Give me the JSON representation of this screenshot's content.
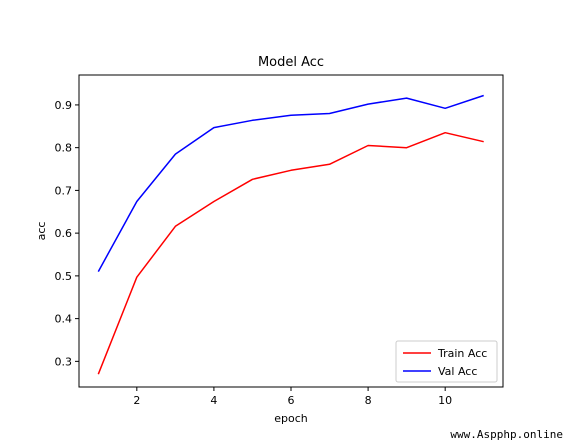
{
  "chart_data": {
    "type": "line",
    "title": "Model Acc",
    "xlabel": "epoch",
    "ylabel": "acc",
    "x": [
      1,
      2,
      3,
      4,
      5,
      6,
      7,
      8,
      9,
      10,
      11
    ],
    "xlim": [
      0.5,
      11.5
    ],
    "ylim": [
      0.24,
      0.97
    ],
    "xticks": [
      2,
      4,
      6,
      8,
      10
    ],
    "yticks": [
      0.3,
      0.4,
      0.5,
      0.6,
      0.7,
      0.8,
      0.9
    ],
    "series": [
      {
        "name": "Train Acc",
        "color": "#ff0000",
        "values": [
          0.27,
          0.497,
          0.616,
          0.674,
          0.726,
          0.747,
          0.761,
          0.805,
          0.8,
          0.835,
          0.814
        ]
      },
      {
        "name": "Val Acc",
        "color": "#0000ff",
        "values": [
          0.51,
          0.674,
          0.785,
          0.847,
          0.864,
          0.876,
          0.88,
          0.902,
          0.916,
          0.892,
          0.922
        ]
      }
    ],
    "grid": false,
    "legend": "lower right"
  },
  "watermark": "www.Aspphp.online"
}
